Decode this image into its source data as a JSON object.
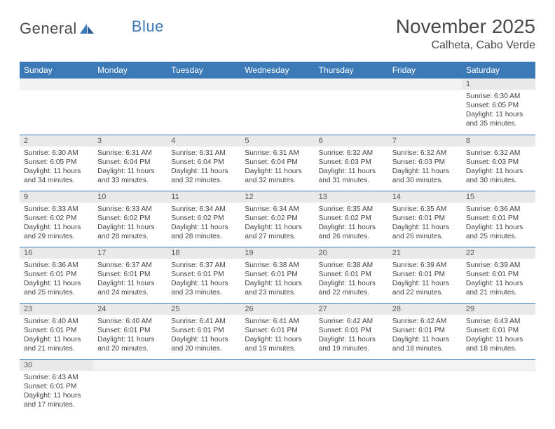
{
  "brand": {
    "part1": "General",
    "part2": "Blue"
  },
  "title": "November 2025",
  "location": "Calheta, Cabo Verde",
  "colors": {
    "header_bg": "#3b79b7",
    "header_text": "#ffffff",
    "daynum_bg": "#e9e9e9",
    "border": "#3b79b7",
    "text": "#444444"
  },
  "weekdays": [
    "Sunday",
    "Monday",
    "Tuesday",
    "Wednesday",
    "Thursday",
    "Friday",
    "Saturday"
  ],
  "weeks": [
    [
      null,
      null,
      null,
      null,
      null,
      null,
      {
        "n": "1",
        "sunrise": "Sunrise: 6:30 AM",
        "sunset": "Sunset: 6:05 PM",
        "daylight": "Daylight: 11 hours and 35 minutes."
      }
    ],
    [
      {
        "n": "2",
        "sunrise": "Sunrise: 6:30 AM",
        "sunset": "Sunset: 6:05 PM",
        "daylight": "Daylight: 11 hours and 34 minutes."
      },
      {
        "n": "3",
        "sunrise": "Sunrise: 6:31 AM",
        "sunset": "Sunset: 6:04 PM",
        "daylight": "Daylight: 11 hours and 33 minutes."
      },
      {
        "n": "4",
        "sunrise": "Sunrise: 6:31 AM",
        "sunset": "Sunset: 6:04 PM",
        "daylight": "Daylight: 11 hours and 32 minutes."
      },
      {
        "n": "5",
        "sunrise": "Sunrise: 6:31 AM",
        "sunset": "Sunset: 6:04 PM",
        "daylight": "Daylight: 11 hours and 32 minutes."
      },
      {
        "n": "6",
        "sunrise": "Sunrise: 6:32 AM",
        "sunset": "Sunset: 6:03 PM",
        "daylight": "Daylight: 11 hours and 31 minutes."
      },
      {
        "n": "7",
        "sunrise": "Sunrise: 6:32 AM",
        "sunset": "Sunset: 6:03 PM",
        "daylight": "Daylight: 11 hours and 30 minutes."
      },
      {
        "n": "8",
        "sunrise": "Sunrise: 6:32 AM",
        "sunset": "Sunset: 6:03 PM",
        "daylight": "Daylight: 11 hours and 30 minutes."
      }
    ],
    [
      {
        "n": "9",
        "sunrise": "Sunrise: 6:33 AM",
        "sunset": "Sunset: 6:02 PM",
        "daylight": "Daylight: 11 hours and 29 minutes."
      },
      {
        "n": "10",
        "sunrise": "Sunrise: 6:33 AM",
        "sunset": "Sunset: 6:02 PM",
        "daylight": "Daylight: 11 hours and 28 minutes."
      },
      {
        "n": "11",
        "sunrise": "Sunrise: 6:34 AM",
        "sunset": "Sunset: 6:02 PM",
        "daylight": "Daylight: 11 hours and 28 minutes."
      },
      {
        "n": "12",
        "sunrise": "Sunrise: 6:34 AM",
        "sunset": "Sunset: 6:02 PM",
        "daylight": "Daylight: 11 hours and 27 minutes."
      },
      {
        "n": "13",
        "sunrise": "Sunrise: 6:35 AM",
        "sunset": "Sunset: 6:02 PM",
        "daylight": "Daylight: 11 hours and 26 minutes."
      },
      {
        "n": "14",
        "sunrise": "Sunrise: 6:35 AM",
        "sunset": "Sunset: 6:01 PM",
        "daylight": "Daylight: 11 hours and 26 minutes."
      },
      {
        "n": "15",
        "sunrise": "Sunrise: 6:36 AM",
        "sunset": "Sunset: 6:01 PM",
        "daylight": "Daylight: 11 hours and 25 minutes."
      }
    ],
    [
      {
        "n": "16",
        "sunrise": "Sunrise: 6:36 AM",
        "sunset": "Sunset: 6:01 PM",
        "daylight": "Daylight: 11 hours and 25 minutes."
      },
      {
        "n": "17",
        "sunrise": "Sunrise: 6:37 AM",
        "sunset": "Sunset: 6:01 PM",
        "daylight": "Daylight: 11 hours and 24 minutes."
      },
      {
        "n": "18",
        "sunrise": "Sunrise: 6:37 AM",
        "sunset": "Sunset: 6:01 PM",
        "daylight": "Daylight: 11 hours and 23 minutes."
      },
      {
        "n": "19",
        "sunrise": "Sunrise: 6:38 AM",
        "sunset": "Sunset: 6:01 PM",
        "daylight": "Daylight: 11 hours and 23 minutes."
      },
      {
        "n": "20",
        "sunrise": "Sunrise: 6:38 AM",
        "sunset": "Sunset: 6:01 PM",
        "daylight": "Daylight: 11 hours and 22 minutes."
      },
      {
        "n": "21",
        "sunrise": "Sunrise: 6:39 AM",
        "sunset": "Sunset: 6:01 PM",
        "daylight": "Daylight: 11 hours and 22 minutes."
      },
      {
        "n": "22",
        "sunrise": "Sunrise: 6:39 AM",
        "sunset": "Sunset: 6:01 PM",
        "daylight": "Daylight: 11 hours and 21 minutes."
      }
    ],
    [
      {
        "n": "23",
        "sunrise": "Sunrise: 6:40 AM",
        "sunset": "Sunset: 6:01 PM",
        "daylight": "Daylight: 11 hours and 21 minutes."
      },
      {
        "n": "24",
        "sunrise": "Sunrise: 6:40 AM",
        "sunset": "Sunset: 6:01 PM",
        "daylight": "Daylight: 11 hours and 20 minutes."
      },
      {
        "n": "25",
        "sunrise": "Sunrise: 6:41 AM",
        "sunset": "Sunset: 6:01 PM",
        "daylight": "Daylight: 11 hours and 20 minutes."
      },
      {
        "n": "26",
        "sunrise": "Sunrise: 6:41 AM",
        "sunset": "Sunset: 6:01 PM",
        "daylight": "Daylight: 11 hours and 19 minutes."
      },
      {
        "n": "27",
        "sunrise": "Sunrise: 6:42 AM",
        "sunset": "Sunset: 6:01 PM",
        "daylight": "Daylight: 11 hours and 19 minutes."
      },
      {
        "n": "28",
        "sunrise": "Sunrise: 6:42 AM",
        "sunset": "Sunset: 6:01 PM",
        "daylight": "Daylight: 11 hours and 18 minutes."
      },
      {
        "n": "29",
        "sunrise": "Sunrise: 6:43 AM",
        "sunset": "Sunset: 6:01 PM",
        "daylight": "Daylight: 11 hours and 18 minutes."
      }
    ],
    [
      {
        "n": "30",
        "sunrise": "Sunrise: 6:43 AM",
        "sunset": "Sunset: 6:01 PM",
        "daylight": "Daylight: 11 hours and 17 minutes."
      },
      null,
      null,
      null,
      null,
      null,
      null
    ]
  ]
}
